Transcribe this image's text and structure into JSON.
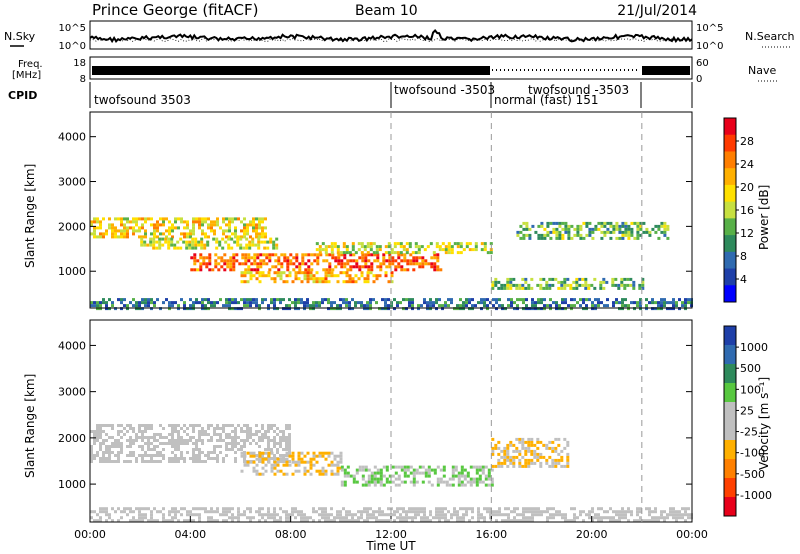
{
  "header": {
    "station": "Prince George (fitACF)",
    "beam": "Beam 10",
    "date": "21/Jul/2014"
  },
  "noise_panel": {
    "left_label": "N.Sky",
    "right_label": "N.Search",
    "ticks_left": [
      "10^5",
      "10^0"
    ],
    "ticks_right": [
      "10^5",
      "10^0"
    ]
  },
  "freq_panel": {
    "left_label_1": "Freq.",
    "left_label_2": "[MHz]",
    "right_label": "Nave",
    "ticks_left": [
      "18",
      "8"
    ],
    "ticks_right": [
      "60",
      "0"
    ]
  },
  "cpid_panel": {
    "label": "CPID",
    "segments": [
      {
        "label": "twofsound 3503",
        "start_hour": 0
      },
      {
        "label": "twofsound -3503",
        "start_hour": 12
      },
      {
        "label": "normal (fast) 151",
        "start_hour": 16
      },
      {
        "label": "twofsound -3503",
        "start_hour": 16
      }
    ],
    "dividers_hours": [
      12,
      16,
      22
    ]
  },
  "chart_data": [
    {
      "type": "heatmap",
      "title": "",
      "quantity": "Power",
      "xlabel": "",
      "ylabel": "Slant Range [km]",
      "xlim": [
        0,
        24
      ],
      "ylim": [
        180,
        4550
      ],
      "yticks": [
        "1000",
        "2000",
        "3000",
        "4000"
      ],
      "colorbar_label": "Power [dB]",
      "colorbar_ticks": [
        "28",
        "24",
        "20",
        "16",
        "12",
        "8",
        "4"
      ],
      "colorbar_colors": [
        "#e8001a",
        "#ff3a00",
        "#ff7e00",
        "#ffb000",
        "#ffe000",
        "#c7e040",
        "#58b048",
        "#2e8a5c",
        "#2f6ab0",
        "#1e3fa8",
        "#0000ff"
      ],
      "bands": [
        {
          "t0": 0,
          "t1": 7,
          "r0": 1750,
          "r1": 2200,
          "value": 18
        },
        {
          "t0": 2,
          "t1": 7.5,
          "r0": 1500,
          "r1": 1750,
          "value": 16
        },
        {
          "t0": 4,
          "t1": 14,
          "r0": 1000,
          "r1": 1400,
          "value": 24
        },
        {
          "t0": 6,
          "t1": 12,
          "r0": 750,
          "r1": 1000,
          "value": 20
        },
        {
          "t0": 9,
          "t1": 16,
          "r0": 1400,
          "r1": 1650,
          "value": 16
        },
        {
          "t0": 16,
          "t1": 22,
          "r0": 600,
          "r1": 850,
          "value": 12
        },
        {
          "t0": 17,
          "t1": 23,
          "r0": 1700,
          "r1": 2100,
          "value": 12
        },
        {
          "t0": 0,
          "t1": 24,
          "r0": 180,
          "r1": 400,
          "value": 8
        }
      ]
    },
    {
      "type": "heatmap",
      "title": "",
      "quantity": "Velocity",
      "xlabel": "Time UT",
      "ylabel": "Slant Range [km]",
      "xlim": [
        0,
        24
      ],
      "ylim": [
        180,
        4550
      ],
      "xticks": [
        "00:00",
        "04:00",
        "08:00",
        "12:00",
        "16:00",
        "20:00",
        "00:00"
      ],
      "yticks": [
        "1000",
        "2000",
        "3000",
        "4000"
      ],
      "colorbar_label": "Velocity [m s⁻¹]",
      "colorbar_ticks": [
        "1000",
        "500",
        "100",
        "25",
        "-25",
        "-100",
        "-500",
        "-1000"
      ],
      "colorbar_colors": [
        "#1e3fa8",
        "#2f6ab0",
        "#2e8a5c",
        "#58c840",
        "#c0c0c0",
        "#c0c0c0",
        "#ffb000",
        "#ff8000",
        "#ff4000",
        "#e8001a"
      ],
      "bands": [
        {
          "t0": 0,
          "t1": 8,
          "r0": 1500,
          "r1": 2300,
          "value": 0
        },
        {
          "t0": 6,
          "t1": 10,
          "r0": 1200,
          "r1": 1700,
          "value": -200
        },
        {
          "t0": 10,
          "t1": 16,
          "r0": 1000,
          "r1": 1400,
          "value": 200
        },
        {
          "t0": 16,
          "t1": 19,
          "r0": 1400,
          "r1": 2000,
          "value": -200
        },
        {
          "t0": 0,
          "t1": 24,
          "r0": 180,
          "r1": 500,
          "value": 50
        }
      ]
    }
  ]
}
